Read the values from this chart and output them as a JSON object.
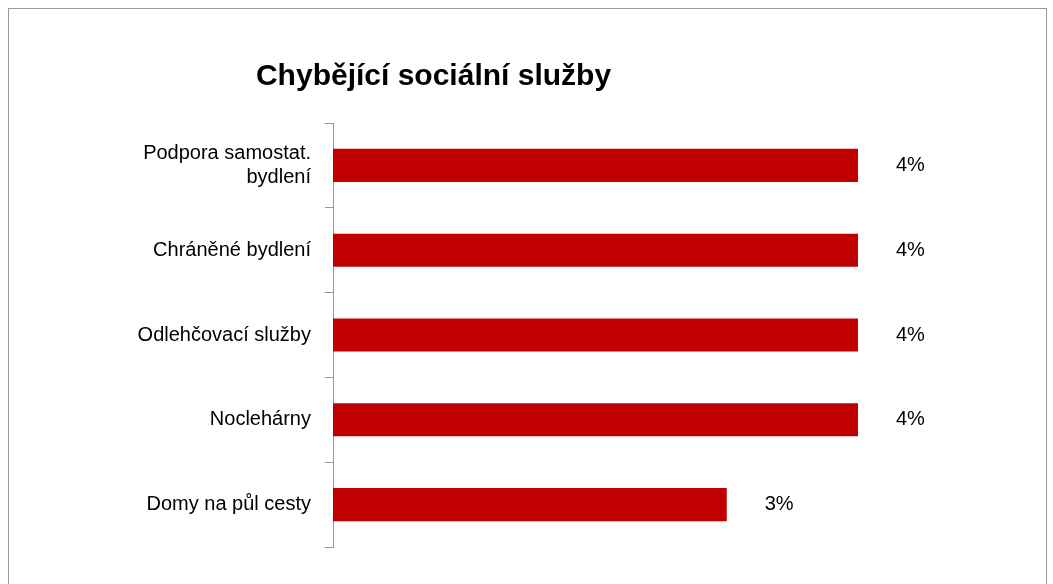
{
  "chart_data": {
    "type": "bar",
    "orientation": "horizontal",
    "title": "Chybějící sociální služby",
    "categories": [
      "Podpora samostat. bydlení",
      "Chráněné bydlení",
      "Odlehčovací služby",
      "Noclehárny",
      "Domy na půl cesty"
    ],
    "values": [
      4,
      4,
      4,
      4,
      3
    ],
    "color": "#c00000",
    "value_labels": [
      "4%",
      "4%",
      "4%",
      "4%",
      "3%"
    ],
    "tick_labels": "y",
    "grid": false,
    "legend": false
  }
}
